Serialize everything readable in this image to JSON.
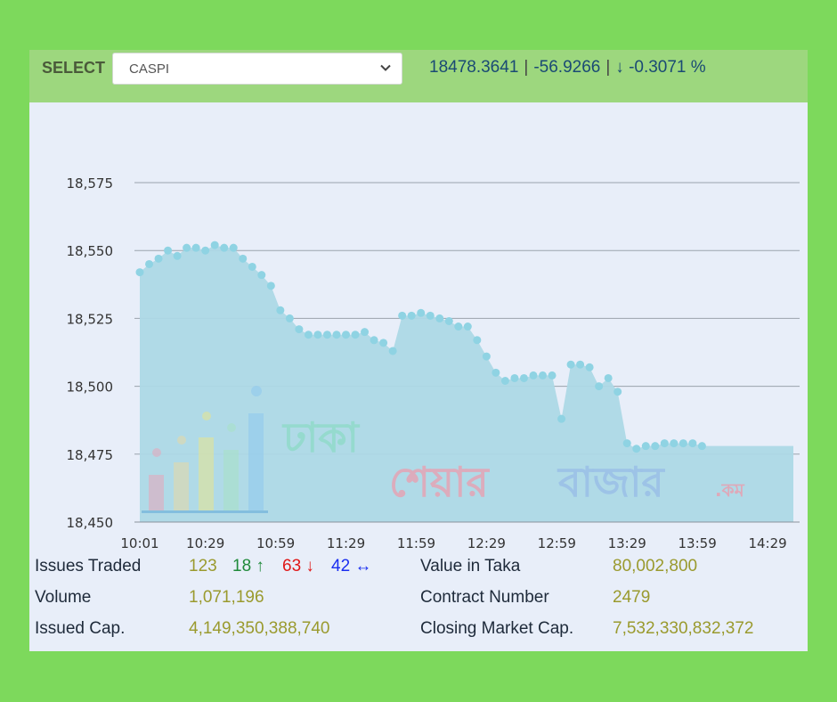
{
  "header": {
    "select_label": "SELECT",
    "selected_symbol": "CASPI",
    "last_value": "18478.3641",
    "change": "-56.9266",
    "change_percent": "-0.3071 %",
    "change_arrow": "↓"
  },
  "stats": {
    "issues_traded_label": "Issues Traded",
    "issues_traded": "123",
    "advanced": "18",
    "advanced_arrow": "↑",
    "declined": "63",
    "declined_arrow": "↓",
    "unchanged": "42",
    "unchanged_arrow": "↔",
    "volume_label": "Volume",
    "volume": "1,071,196",
    "issued_cap_label": "Issued Cap.",
    "issued_cap": "4,149,350,388,740",
    "value_label": "Value in Taka",
    "value": "80,002,800",
    "contract_label": "Contract Number",
    "contract": "2479",
    "closing_cap_label": "Closing Market Cap.",
    "closing_cap": "7,532,330,832,372"
  },
  "watermark": {
    "line1": "ঢাকা",
    "line2a": "শেয়ার",
    "line2b": "বাজার",
    "suffix": ".কম"
  },
  "colors": {
    "background": "#7dd95c",
    "header_bar": "#9dd77e",
    "panel": "#e8eef9",
    "area_fill": "#add8e6",
    "point": "#8fd3e3",
    "grid": "#9aa3ad"
  },
  "chart_data": {
    "type": "area",
    "title": "",
    "xlabel": "",
    "ylabel": "",
    "x_tick_labels": [
      "10:01",
      "10:29",
      "10:59",
      "11:29",
      "11:59",
      "12:29",
      "12:59",
      "13:29",
      "13:59",
      "14:29"
    ],
    "y_tick_labels": [
      "18,575",
      "18,550",
      "18,525",
      "18,500",
      "18,475",
      "18,450"
    ],
    "y_ticks": [
      18575,
      18550,
      18525,
      18500,
      18475,
      18450
    ],
    "ylim": [
      18450,
      18575
    ],
    "x_range": [
      "10:01",
      "14:40"
    ],
    "grid": "horizontal",
    "legend": "none",
    "series": [
      {
        "points": [
          [
            "10:01",
            18542
          ],
          [
            "10:05",
            18545
          ],
          [
            "10:09",
            18547
          ],
          [
            "10:13",
            18550
          ],
          [
            "10:17",
            18548
          ],
          [
            "10:21",
            18551
          ],
          [
            "10:25",
            18551
          ],
          [
            "10:29",
            18550
          ],
          [
            "10:33",
            18552
          ],
          [
            "10:37",
            18551
          ],
          [
            "10:41",
            18551
          ],
          [
            "10:45",
            18547
          ],
          [
            "10:49",
            18544
          ],
          [
            "10:53",
            18541
          ],
          [
            "10:57",
            18537
          ],
          [
            "11:01",
            18528
          ],
          [
            "11:05",
            18525
          ],
          [
            "11:09",
            18521
          ],
          [
            "11:13",
            18519
          ],
          [
            "11:17",
            18519
          ],
          [
            "11:21",
            18519
          ],
          [
            "11:25",
            18519
          ],
          [
            "11:29",
            18519
          ],
          [
            "11:33",
            18519
          ],
          [
            "11:37",
            18520
          ],
          [
            "11:41",
            18517
          ],
          [
            "11:45",
            18516
          ],
          [
            "11:49",
            18513
          ],
          [
            "11:53",
            18526
          ],
          [
            "11:57",
            18526
          ],
          [
            "12:01",
            18527
          ],
          [
            "12:05",
            18526
          ],
          [
            "12:09",
            18525
          ],
          [
            "12:13",
            18524
          ],
          [
            "12:17",
            18522
          ],
          [
            "12:21",
            18522
          ],
          [
            "12:25",
            18517
          ],
          [
            "12:29",
            18511
          ],
          [
            "12:33",
            18505
          ],
          [
            "12:37",
            18502
          ],
          [
            "12:41",
            18503
          ],
          [
            "12:45",
            18503
          ],
          [
            "12:49",
            18504
          ],
          [
            "12:53",
            18504
          ],
          [
            "12:57",
            18504
          ],
          [
            "13:01",
            18488
          ],
          [
            "13:05",
            18508
          ],
          [
            "13:09",
            18508
          ],
          [
            "13:13",
            18507
          ],
          [
            "13:17",
            18500
          ],
          [
            "13:21",
            18503
          ],
          [
            "13:25",
            18498
          ],
          [
            "13:29",
            18479
          ],
          [
            "13:33",
            18477
          ],
          [
            "13:37",
            18478
          ],
          [
            "13:41",
            18478
          ],
          [
            "13:45",
            18479
          ],
          [
            "13:49",
            18479
          ],
          [
            "13:53",
            18479
          ],
          [
            "13:57",
            18479
          ],
          [
            "14:01",
            18478
          ]
        ]
      }
    ]
  }
}
